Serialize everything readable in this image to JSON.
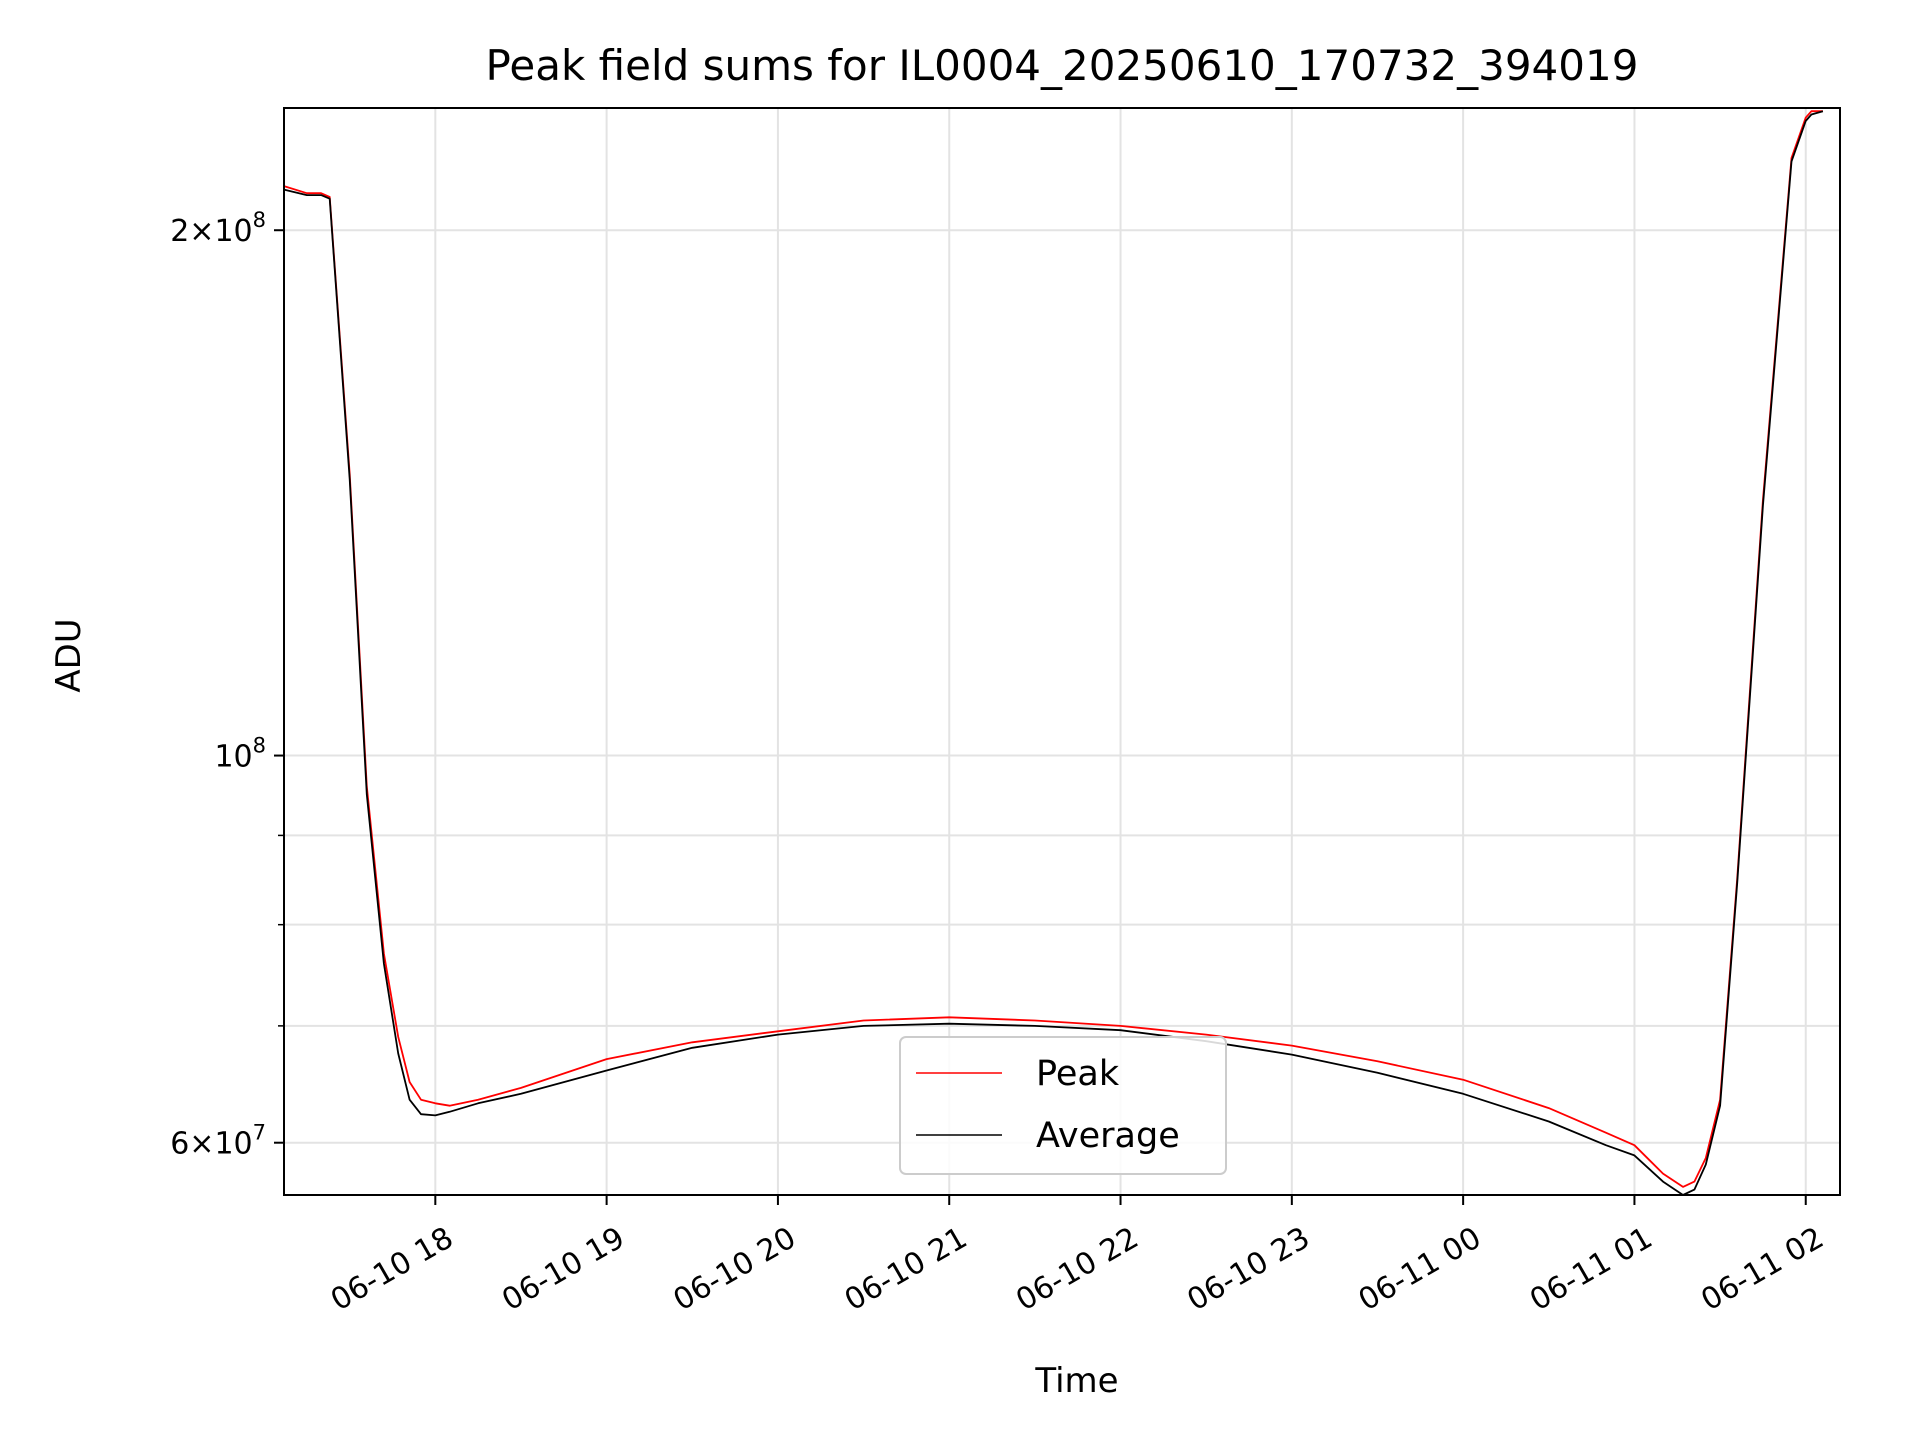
{
  "chart_data": {
    "type": "line",
    "title": "Peak field sums for IL0004_20250610_170732_394019",
    "xlabel": "Time",
    "ylabel": "ADU",
    "yscale": "log",
    "ylim": [
      56000000,
      235000000
    ],
    "xlim": [
      "06-10 17:07",
      "06-11 02:12"
    ],
    "grid": true,
    "legend_position": "lower-center",
    "x_ticks": [
      "06-10 18",
      "06-10 19",
      "06-10 20",
      "06-10 21",
      "06-10 22",
      "06-10 23",
      "06-11 00",
      "06-11 01",
      "06-11 02"
    ],
    "y_ticks": [
      {
        "value": 60000000,
        "base": "6",
        "exp": "7",
        "mantissa": true
      },
      {
        "value": 100000000,
        "base": "",
        "exp": "8",
        "mantissa": false
      },
      {
        "value": 200000000,
        "base": "2",
        "exp": "8",
        "mantissa": true
      }
    ],
    "y_minor_ticks": [
      70000000,
      80000000,
      90000000
    ],
    "x": [
      "06-10 17:07",
      "06-10 17:15",
      "06-10 17:20",
      "06-10 17:23",
      "06-10 17:30",
      "06-10 17:36",
      "06-10 17:42",
      "06-10 17:47",
      "06-10 17:51",
      "06-10 17:55",
      "06-10 18:00",
      "06-10 18:05",
      "06-10 18:15",
      "06-10 18:30",
      "06-10 19:00",
      "06-10 19:30",
      "06-10 20:00",
      "06-10 20:30",
      "06-10 21:00",
      "06-10 21:30",
      "06-10 22:00",
      "06-10 22:30",
      "06-10 23:00",
      "06-10 23:30",
      "06-11 00:00",
      "06-11 00:30",
      "06-11 00:50",
      "06-11 01:00",
      "06-11 01:10",
      "06-11 01:17",
      "06-11 01:21",
      "06-11 01:25",
      "06-11 01:30",
      "06-11 01:36",
      "06-11 01:45",
      "06-11 01:55",
      "06-11 02:00",
      "06-11 02:02",
      "06-11 02:06"
    ],
    "series": [
      {
        "name": "Peak",
        "color": "#ff0000",
        "values": [
          212000000,
          210000000,
          210000000,
          209000000,
          145000000,
          96000000,
          77000000,
          69000000,
          65000000,
          63500000,
          63200000,
          63000000,
          63500000,
          64500000,
          67000000,
          68500000,
          69500000,
          70500000,
          70800000,
          70500000,
          70000000,
          69200000,
          68200000,
          66800000,
          65200000,
          62800000,
          60800000,
          59800000,
          57600000,
          56600000,
          57000000,
          58800000,
          63500000,
          85000000,
          140000000,
          220000000,
          232000000,
          234000000,
          234000000
        ]
      },
      {
        "name": "Average",
        "color": "#000000",
        "values": [
          211000000,
          209500000,
          209500000,
          208500000,
          144000000,
          95000000,
          76000000,
          67500000,
          63500000,
          62300000,
          62200000,
          62500000,
          63200000,
          64000000,
          66000000,
          68000000,
          69200000,
          70000000,
          70200000,
          70000000,
          69600000,
          68600000,
          67400000,
          65800000,
          64000000,
          61700000,
          59800000,
          59000000,
          57000000,
          56000000,
          56400000,
          58300000,
          63000000,
          84500000,
          139000000,
          219000000,
          231000000,
          233000000,
          234000000
        ]
      }
    ]
  }
}
